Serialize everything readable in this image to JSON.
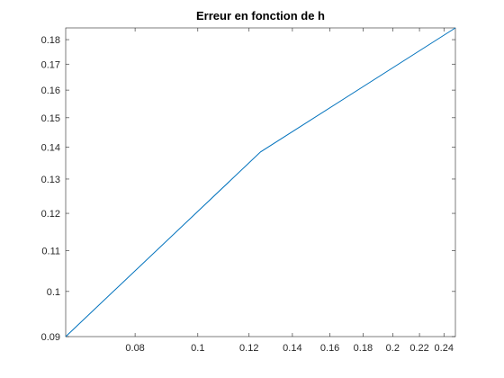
{
  "chart_data": {
    "type": "line",
    "title": "Erreur en fonction de h",
    "xlabel": "",
    "ylabel": "",
    "xscale": "log",
    "yscale": "log",
    "xlim": [
      0.0625,
      0.25
    ],
    "ylim": [
      0.09,
      0.185
    ],
    "xticks": [
      0.08,
      0.1,
      0.12,
      0.14,
      0.16,
      0.18,
      0.2,
      0.22,
      0.24
    ],
    "xtick_labels": [
      "0.08",
      "0.1",
      "0.12",
      "0.14",
      "0.16",
      "0.18",
      "0.2",
      "0.22",
      "0.24"
    ],
    "yticks": [
      0.09,
      0.1,
      0.11,
      0.12,
      0.13,
      0.14,
      0.15,
      0.16,
      0.17,
      0.18
    ],
    "ytick_labels": [
      "0.09",
      "0.1",
      "0.11",
      "0.12",
      "0.13",
      "0.14",
      "0.15",
      "0.16",
      "0.17",
      "0.18"
    ],
    "grid": false,
    "legend": "none",
    "series": [
      {
        "x": [
          0.0625,
          0.125,
          0.25
        ],
        "y": [
          0.09,
          0.1385,
          0.185
        ],
        "color": "#0072bd"
      }
    ]
  }
}
